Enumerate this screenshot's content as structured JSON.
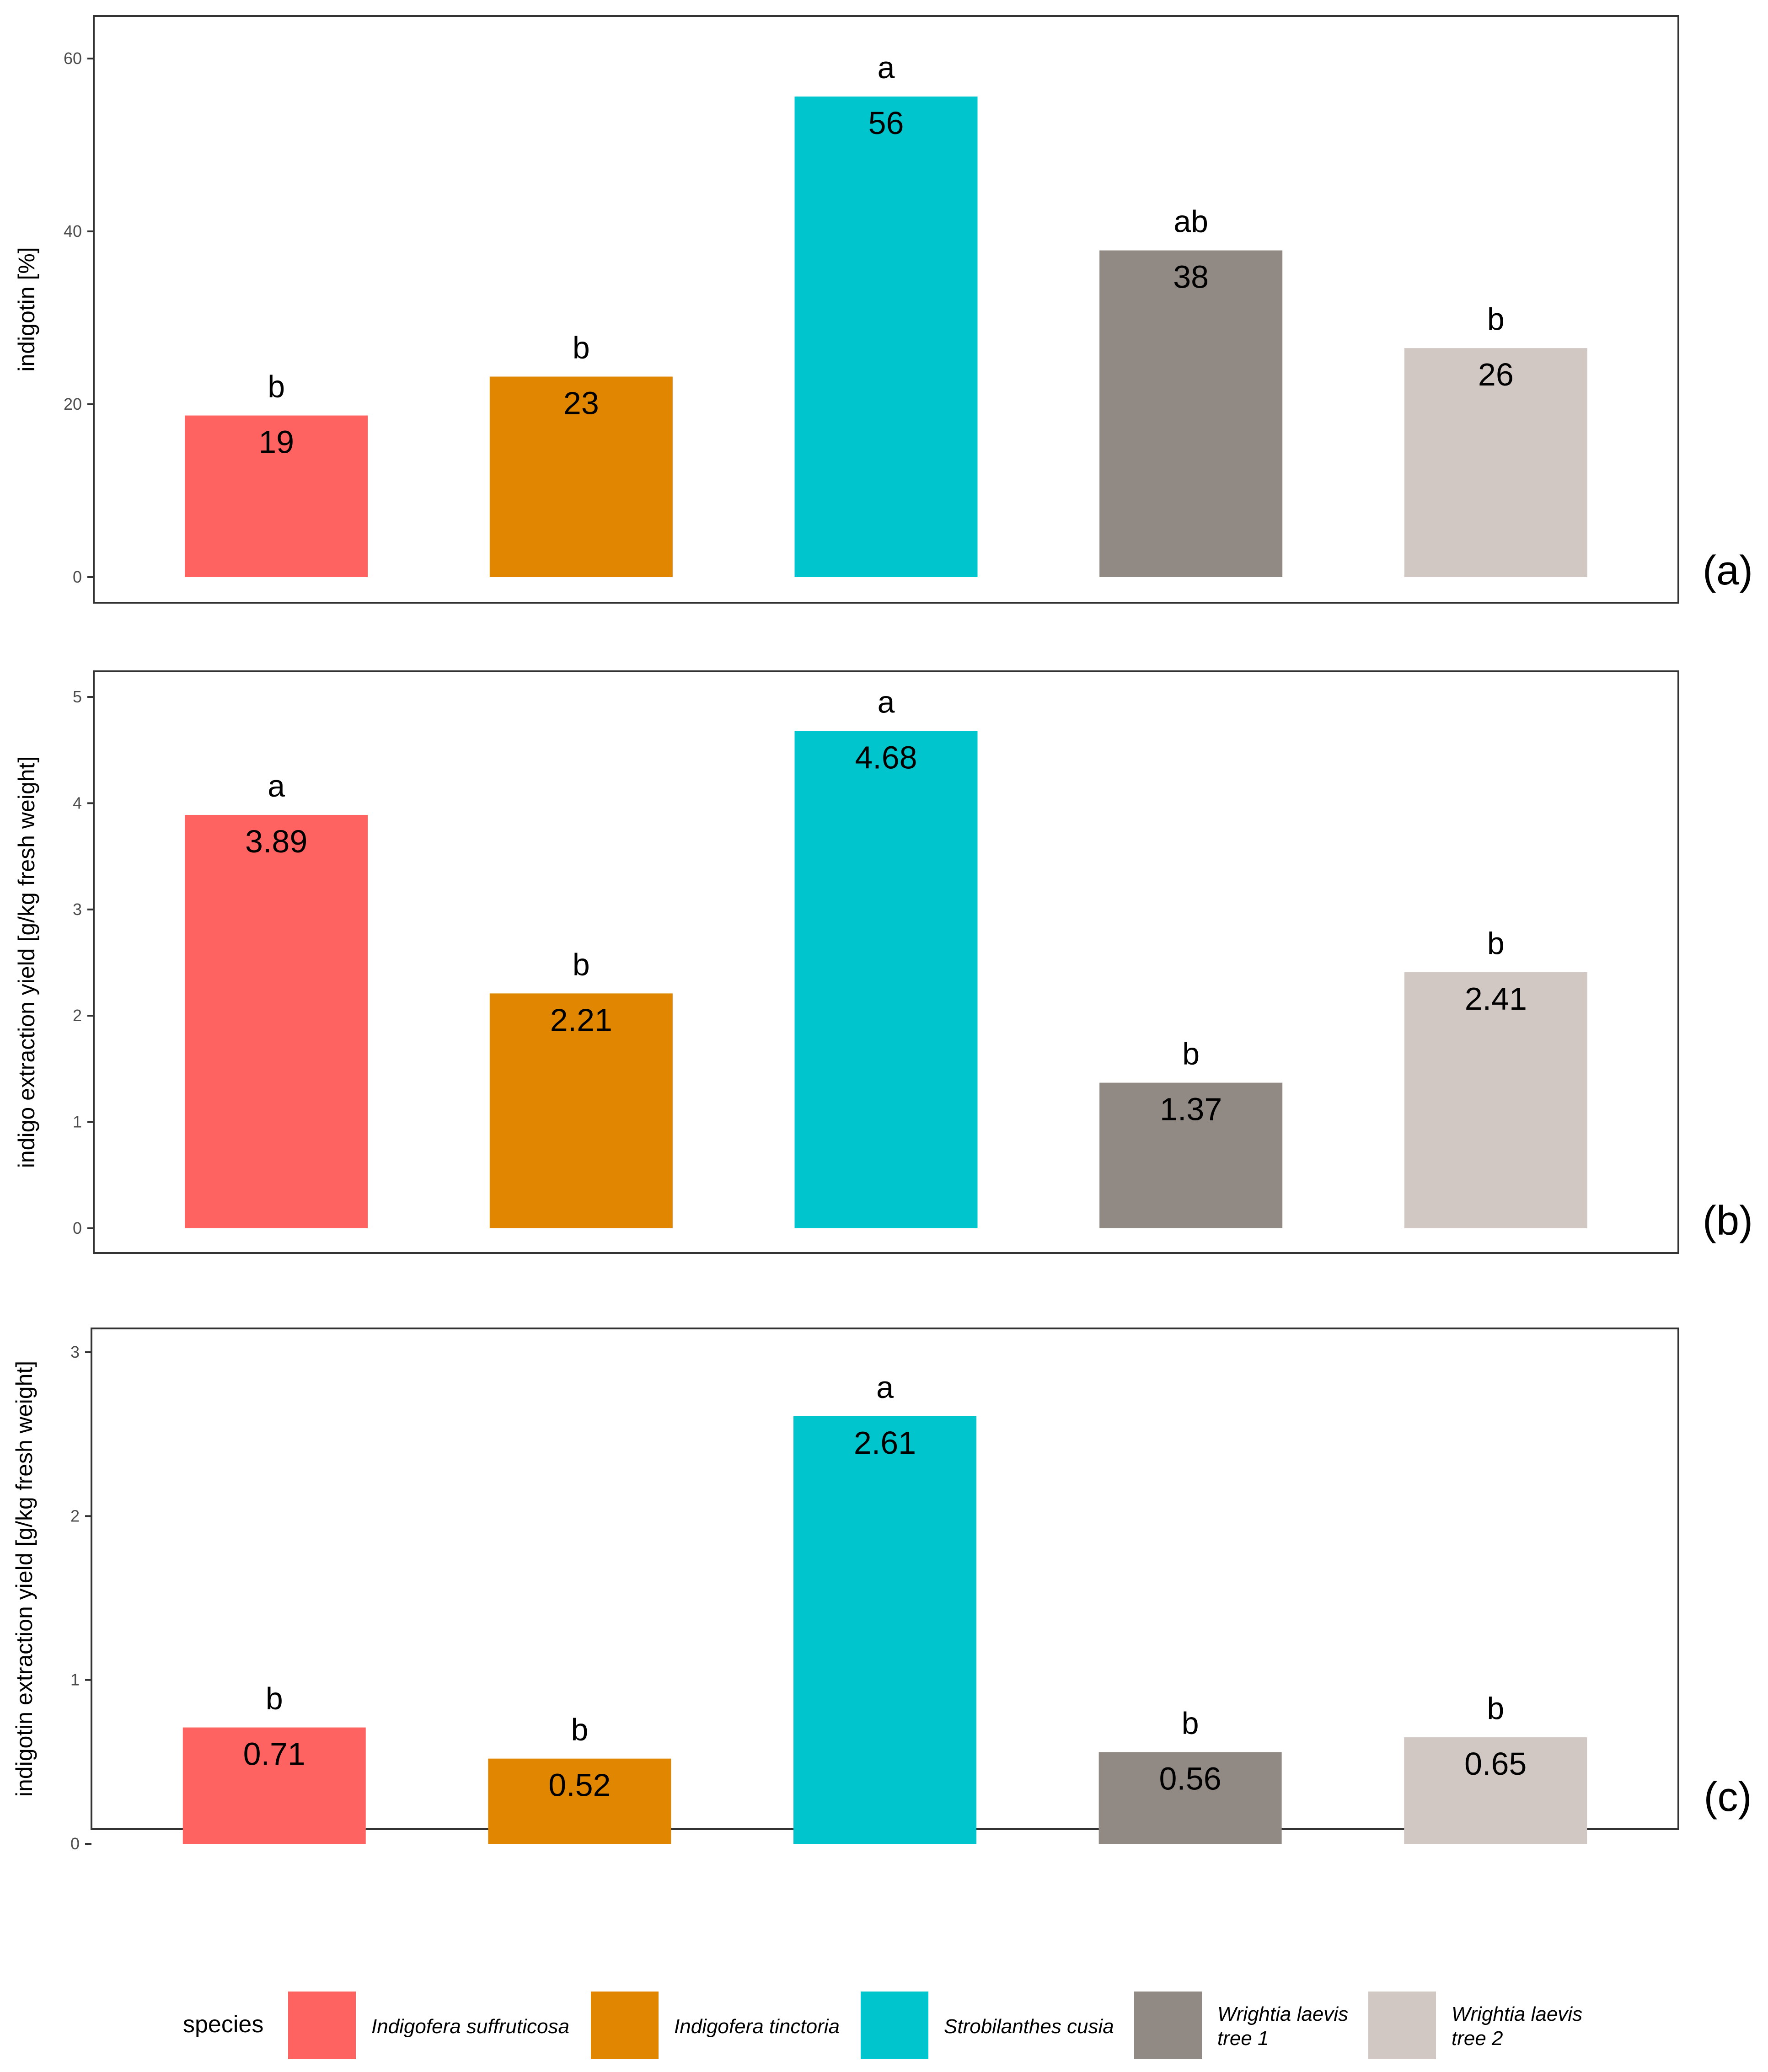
{
  "species": [
    {
      "name": "Indigofera suffruticosa",
      "lines": [
        "Indigofera suffruticosa"
      ],
      "color": "#FF6361"
    },
    {
      "name": "Indigofera tinctoria",
      "lines": [
        "Indigofera tinctoria"
      ],
      "color": "#E08600"
    },
    {
      "name": "Strobilanthes cusia",
      "lines": [
        "Strobilanthes cusia"
      ],
      "color": "#00C5CC"
    },
    {
      "name": "Wrightia laevis tree 1",
      "lines": [
        "Wrightia laevis",
        "tree 1"
      ],
      "color": "#908984"
    },
    {
      "name": "Wrightia laevis tree 2",
      "lines": [
        "Wrightia laevis",
        "tree 2"
      ],
      "color": "#D2C8C3"
    }
  ],
  "legend": {
    "title": "species"
  },
  "chart_data": [
    {
      "type": "bar",
      "panel": "(a)",
      "ylabel": "indigotin [%]",
      "xlabel": "",
      "ylim": [
        0,
        65
      ],
      "yticks": [
        0,
        20,
        40,
        60
      ],
      "categories": [
        "Indigofera suffruticosa",
        "Indigofera tinctoria",
        "Strobilanthes cusia",
        "Wrightia laevis tree 1",
        "Wrightia laevis tree 2"
      ],
      "values": [
        18.7,
        23.2,
        55.6,
        37.8,
        26.5
      ],
      "value_labels": [
        "19",
        "23",
        "56",
        "38",
        "26"
      ],
      "letters": [
        "b",
        "b",
        "a",
        "ab",
        "b"
      ]
    },
    {
      "type": "bar",
      "panel": "(b)",
      "ylabel": "indigo extraction yield [g/kg fresh weight]",
      "xlabel": "",
      "ylim": [
        0,
        5.1
      ],
      "yticks": [
        0,
        1,
        2,
        3,
        4,
        5
      ],
      "categories": [
        "Indigofera suffruticosa",
        "Indigofera tinctoria",
        "Strobilanthes cusia",
        "Wrightia laevis tree 1",
        "Wrightia laevis tree 2"
      ],
      "values": [
        3.89,
        2.21,
        4.68,
        1.37,
        2.41
      ],
      "value_labels": [
        "3.89",
        "2.21",
        "4.68",
        "1.37",
        "2.41"
      ],
      "letters": [
        "a",
        "b",
        "a",
        "b",
        "b"
      ]
    },
    {
      "type": "bar",
      "panel": "(c)",
      "ylabel": "indigotin extraction yield [g/kg fresh weight]",
      "xlabel": "",
      "ylim": [
        0,
        3.0
      ],
      "yticks": [
        0,
        1,
        2,
        3
      ],
      "categories": [
        "Indigofera suffruticosa",
        "Indigofera tinctoria",
        "Strobilanthes cusia",
        "Wrightia laevis tree 1",
        "Wrightia laevis tree 2"
      ],
      "values": [
        0.71,
        0.52,
        2.61,
        0.56,
        0.65
      ],
      "value_labels": [
        "0.71",
        "0.52",
        "2.61",
        "0.56",
        "0.65"
      ],
      "letters": [
        "b",
        "b",
        "a",
        "b",
        "b"
      ]
    }
  ]
}
